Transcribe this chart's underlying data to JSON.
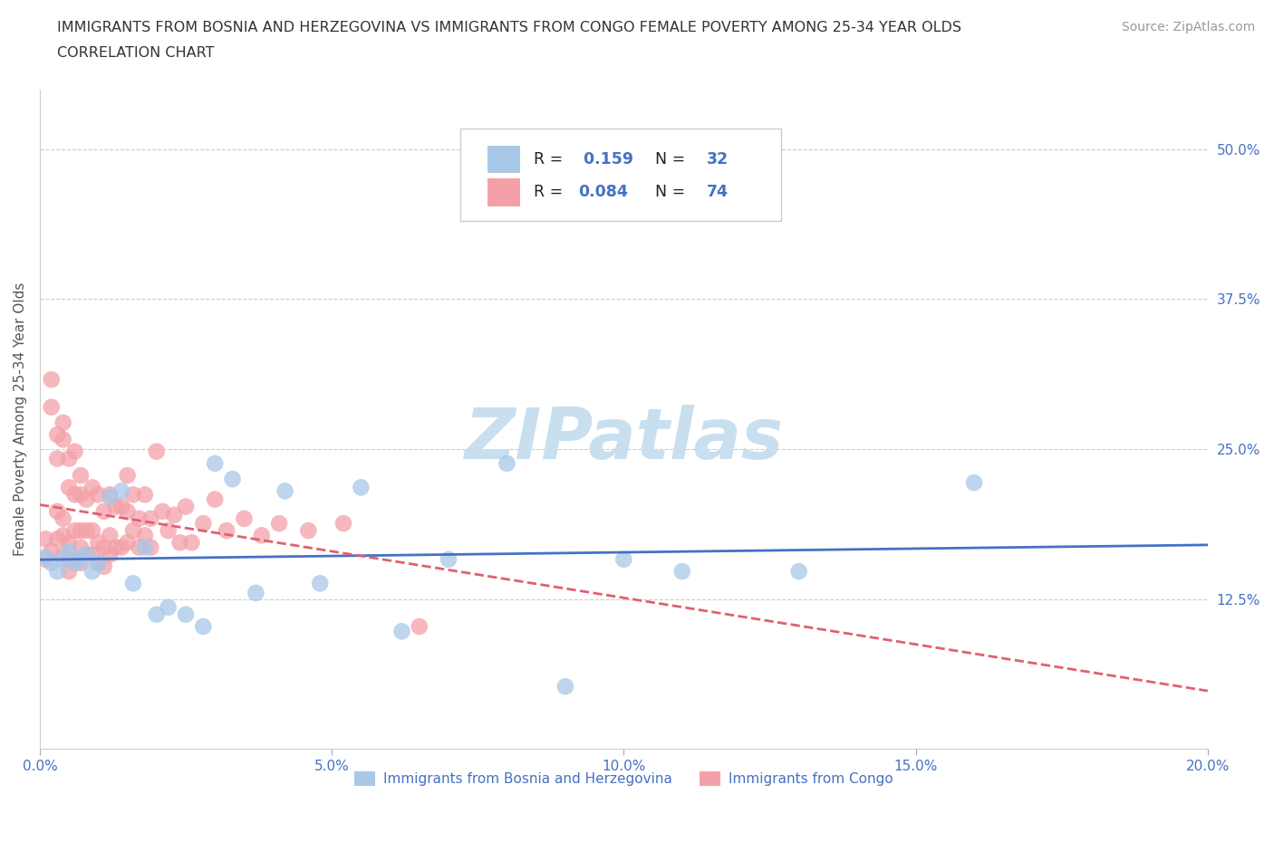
{
  "title_line1": "IMMIGRANTS FROM BOSNIA AND HERZEGOVINA VS IMMIGRANTS FROM CONGO FEMALE POVERTY AMONG 25-34 YEAR OLDS",
  "title_line2": "CORRELATION CHART",
  "source": "Source: ZipAtlas.com",
  "ylabel": "Female Poverty Among 25-34 Year Olds",
  "xlim": [
    0.0,
    0.2
  ],
  "ylim": [
    0.0,
    0.55
  ],
  "xticks": [
    0.0,
    0.05,
    0.1,
    0.15,
    0.2
  ],
  "xticklabels": [
    "0.0%",
    "5.0%",
    "10.0%",
    "15.0%",
    "20.0%"
  ],
  "yticks_right": [
    0.125,
    0.25,
    0.375,
    0.5
  ],
  "ytick_labels_right": [
    "12.5%",
    "25.0%",
    "37.5%",
    "50.0%"
  ],
  "bosnia_color": "#a8c8e8",
  "congo_color": "#f4a0a8",
  "bosnia_trend_color": "#4472c4",
  "congo_trend_color": "#e06070",
  "R_bosnia": 0.159,
  "N_bosnia": 32,
  "R_congo": 0.084,
  "N_congo": 74,
  "watermark": "ZIPatlas",
  "watermark_color": "#c8dff0",
  "legend_label_bosnia": "Immigrants from Bosnia and Herzegovina",
  "legend_label_congo": "Immigrants from Congo",
  "tick_color": "#4472c4",
  "bosnia_x": [
    0.001,
    0.002,
    0.003,
    0.004,
    0.005,
    0.006,
    0.007,
    0.008,
    0.009,
    0.01,
    0.012,
    0.014,
    0.016,
    0.018,
    0.02,
    0.022,
    0.025,
    0.028,
    0.03,
    0.033,
    0.037,
    0.042,
    0.048,
    0.055,
    0.062,
    0.07,
    0.08,
    0.09,
    0.1,
    0.11,
    0.13,
    0.16
  ],
  "bosnia_y": [
    0.16,
    0.155,
    0.148,
    0.158,
    0.165,
    0.155,
    0.158,
    0.162,
    0.148,
    0.155,
    0.21,
    0.215,
    0.138,
    0.168,
    0.112,
    0.118,
    0.112,
    0.102,
    0.238,
    0.225,
    0.13,
    0.215,
    0.138,
    0.218,
    0.098,
    0.158,
    0.238,
    0.052,
    0.158,
    0.148,
    0.148,
    0.222
  ],
  "congo_x": [
    0.001,
    0.001,
    0.002,
    0.002,
    0.002,
    0.003,
    0.003,
    0.003,
    0.003,
    0.004,
    0.004,
    0.004,
    0.004,
    0.004,
    0.005,
    0.005,
    0.005,
    0.005,
    0.005,
    0.006,
    0.006,
    0.006,
    0.006,
    0.007,
    0.007,
    0.007,
    0.007,
    0.007,
    0.008,
    0.008,
    0.008,
    0.009,
    0.009,
    0.009,
    0.01,
    0.01,
    0.01,
    0.011,
    0.011,
    0.011,
    0.012,
    0.012,
    0.012,
    0.013,
    0.013,
    0.014,
    0.014,
    0.015,
    0.015,
    0.015,
    0.016,
    0.016,
    0.017,
    0.017,
    0.018,
    0.018,
    0.019,
    0.019,
    0.02,
    0.021,
    0.022,
    0.023,
    0.024,
    0.025,
    0.026,
    0.028,
    0.03,
    0.032,
    0.035,
    0.038,
    0.041,
    0.046,
    0.052,
    0.065
  ],
  "congo_y": [
    0.158,
    0.175,
    0.285,
    0.308,
    0.165,
    0.242,
    0.262,
    0.198,
    0.175,
    0.272,
    0.258,
    0.192,
    0.178,
    0.162,
    0.242,
    0.218,
    0.172,
    0.158,
    0.148,
    0.248,
    0.212,
    0.182,
    0.158,
    0.228,
    0.212,
    0.182,
    0.168,
    0.155,
    0.208,
    0.182,
    0.162,
    0.218,
    0.182,
    0.162,
    0.212,
    0.172,
    0.155,
    0.198,
    0.168,
    0.152,
    0.212,
    0.178,
    0.162,
    0.202,
    0.168,
    0.202,
    0.168,
    0.228,
    0.198,
    0.172,
    0.212,
    0.182,
    0.192,
    0.168,
    0.212,
    0.178,
    0.192,
    0.168,
    0.248,
    0.198,
    0.182,
    0.195,
    0.172,
    0.202,
    0.172,
    0.188,
    0.208,
    0.182,
    0.192,
    0.178,
    0.188,
    0.182,
    0.188,
    0.102
  ]
}
